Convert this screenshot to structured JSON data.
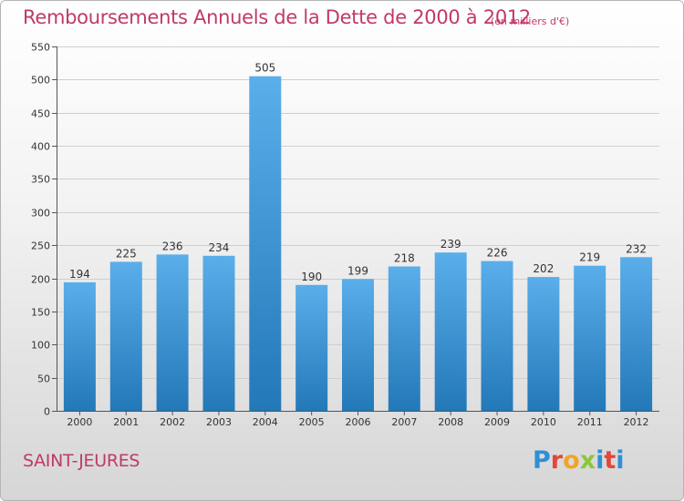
{
  "header": {
    "title": "Remboursements Annuels de la Dette de 2000 à 2012",
    "subtitle": "(en milliers d'€)"
  },
  "footer": {
    "commune": "SAINT-JEURES",
    "logo_letters": [
      "P",
      "r",
      "o",
      "x",
      "i",
      "t",
      "i"
    ]
  },
  "colors": {
    "title": "#c0396b",
    "bar_top": "#5aaeea",
    "bar_bottom": "#2378b8"
  },
  "chart_data": {
    "type": "bar",
    "title": "Remboursements Annuels de la Dette de 2000 à 2012",
    "subtitle": "(en milliers d'€)",
    "categories": [
      "2000",
      "2001",
      "2002",
      "2003",
      "2004",
      "2005",
      "2006",
      "2007",
      "2008",
      "2009",
      "2010",
      "2011",
      "2012"
    ],
    "values": [
      194,
      225,
      236,
      234,
      505,
      190,
      199,
      218,
      239,
      226,
      202,
      219,
      232
    ],
    "ylim": [
      0,
      550
    ],
    "yticks": [
      0,
      50,
      100,
      150,
      200,
      250,
      300,
      350,
      400,
      450,
      500,
      550
    ],
    "grid": true,
    "data_labels": true
  }
}
